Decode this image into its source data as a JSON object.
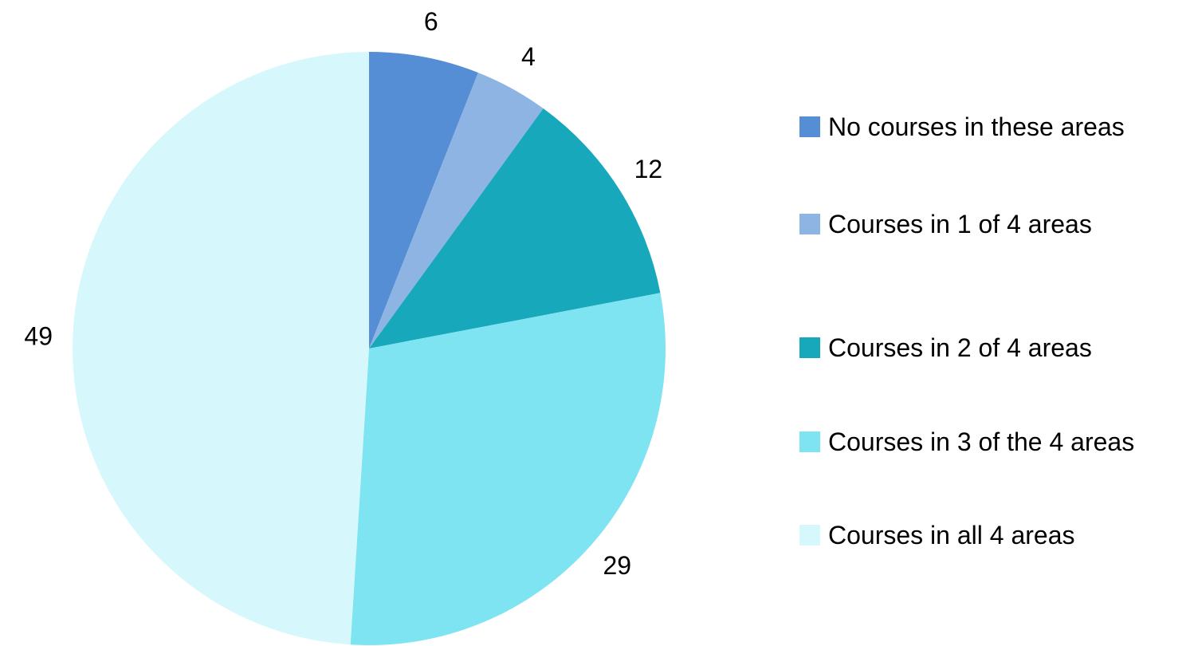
{
  "chart_data": {
    "type": "pie",
    "categories": [
      "No courses in these areas",
      "Courses in 1 of 4 areas",
      "Courses in 2 of 4 areas",
      "Courses in 3 of the 4 areas",
      "Courses in all 4 areas"
    ],
    "values": [
      6,
      4,
      12,
      29,
      49
    ],
    "colors": [
      "#558ed5",
      "#8eb4e3",
      "#17a8bc",
      "#7fe4f1",
      "#d6f8fc"
    ],
    "legend": "right"
  }
}
